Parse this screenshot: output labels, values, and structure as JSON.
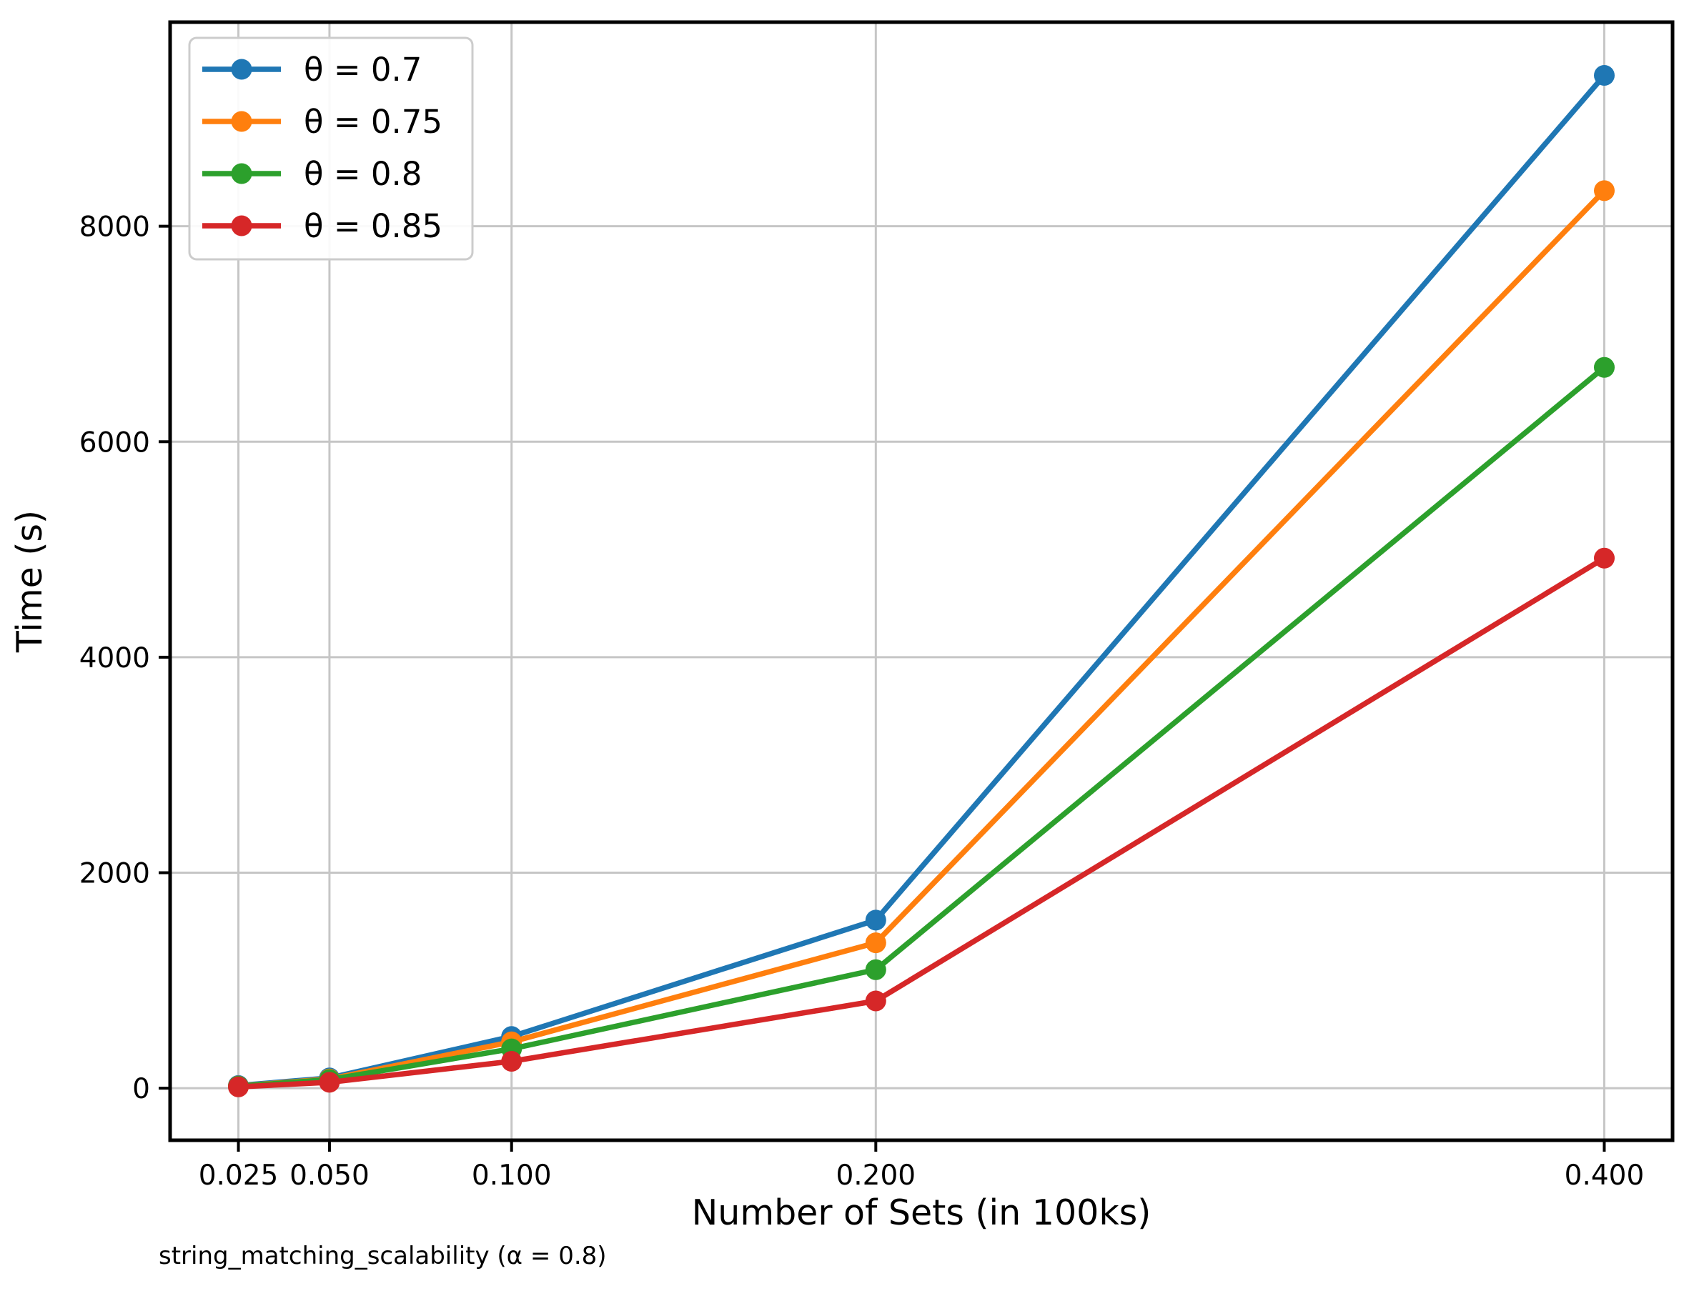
{
  "figure": {
    "background": "#ffffff",
    "caption": "string_matching_scalability (α = 0.8)"
  },
  "chart_data": {
    "type": "line",
    "title": "",
    "xlabel": "Number of Sets (in 100ks)",
    "ylabel": "Time (s)",
    "x": [
      0.025,
      0.05,
      0.1,
      0.2,
      0.4
    ],
    "x_tick_labels": [
      "0.025",
      "0.050",
      "0.100",
      "0.200",
      "0.400"
    ],
    "y_ticks": [
      0,
      2000,
      4000,
      6000,
      8000
    ],
    "xlim": [
      0.00625,
      0.41875
    ],
    "ylim": [
      -483,
      9894
    ],
    "grid": true,
    "legend_position": "upper left",
    "series": [
      {
        "name": "θ = 0.7",
        "color": "#1f77b4",
        "values": [
          25,
          95,
          480,
          1560,
          9400
        ]
      },
      {
        "name": "θ = 0.75",
        "color": "#ff7f0e",
        "values": [
          20,
          85,
          430,
          1350,
          8330
        ]
      },
      {
        "name": "θ = 0.8",
        "color": "#2ca02c",
        "values": [
          18,
          80,
          365,
          1100,
          6690
        ]
      },
      {
        "name": "θ = 0.85",
        "color": "#d62728",
        "values": [
          12,
          55,
          250,
          810,
          4920
        ]
      }
    ]
  },
  "styles": {
    "grid_color": "#c6c6c6",
    "spine_color": "#000000",
    "tick_color": "#000000",
    "text_color": "#000000",
    "legend_border": "#cccccc",
    "legend_background": "#ffffff"
  }
}
